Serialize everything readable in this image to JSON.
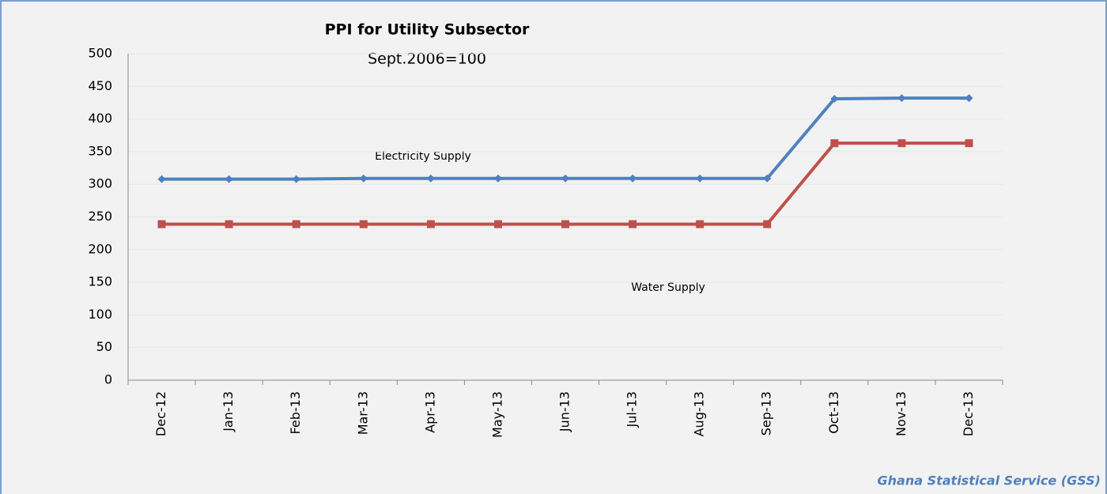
{
  "chart_data": {
    "type": "line",
    "title": "PPI  for Utility Subsector",
    "subtitle": "Sept.2006=100",
    "source": "Ghana Statistical Service (GSS)",
    "categories": [
      "Dec-12",
      "Jan-13",
      "Feb-13",
      "Mar-13",
      "Apr-13",
      "May-13",
      "Jun-13",
      "Jul-13",
      "Aug-13",
      "Sep-13",
      "Oct-13",
      "Nov-13",
      "Dec-13"
    ],
    "series": [
      {
        "name": "Electricity Supply",
        "color": "#4f81bd",
        "marker": "diamond",
        "values": [
          308,
          308,
          308,
          309,
          309,
          309,
          309,
          309,
          309,
          309,
          431,
          432,
          432
        ]
      },
      {
        "name": "Water Supply",
        "color": "#c0504d",
        "marker": "square",
        "values": [
          239,
          239,
          239,
          239,
          239,
          239,
          239,
          239,
          239,
          239,
          363,
          363,
          363
        ]
      }
    ],
    "ylim": [
      0,
      500
    ],
    "yticks": [
      0,
      50,
      100,
      150,
      200,
      250,
      300,
      350,
      400,
      450,
      500
    ],
    "grid": true
  }
}
